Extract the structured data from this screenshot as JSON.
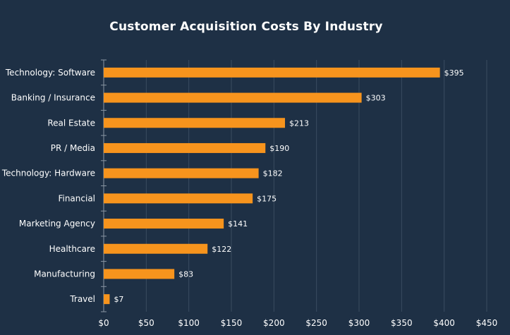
{
  "chart_data": {
    "type": "bar",
    "orientation": "horizontal",
    "title": "Customer Acquisition Costs By Industry",
    "xlabel": "",
    "ylabel": "",
    "categories": [
      "Technology: Software",
      "Banking / Insurance",
      "Real Estate",
      "PR / Media",
      "Technology: Hardware",
      "Financial",
      "Marketing Agency",
      "Healthcare",
      "Manufacturing",
      "Travel"
    ],
    "values": [
      395,
      303,
      213,
      190,
      182,
      175,
      141,
      122,
      83,
      7
    ],
    "data_labels": [
      "$395",
      "$303",
      "$213",
      "$190",
      "$182",
      "$175",
      "$141",
      "$122",
      "$83",
      "$7"
    ],
    "xlim": [
      0,
      450
    ],
    "x_ticks": [
      0,
      50,
      100,
      150,
      200,
      250,
      300,
      350,
      400,
      450
    ],
    "x_tick_labels": [
      "$0",
      "$50",
      "$100",
      "$150",
      "$200",
      "$250",
      "$300",
      "$350",
      "$400",
      "$450"
    ],
    "grid": true,
    "legend": "none",
    "colors": {
      "background": "#1e3045",
      "bar": "#f7941d",
      "grid": "#3a4c60",
      "axis": "#8a96a3",
      "text": "#ffffff"
    }
  }
}
